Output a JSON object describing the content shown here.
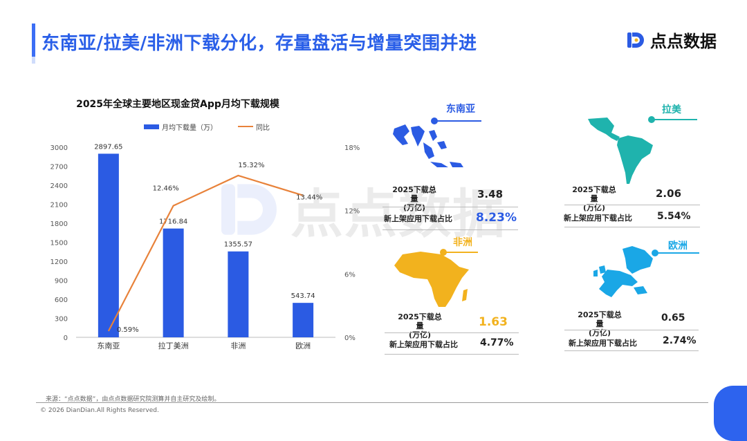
{
  "header": {
    "title": "东南亚/拉美/非洲下载分化，存量盘活与增量突围并进",
    "logo_text": "点点数据"
  },
  "watermark": "点点数据",
  "chart_data": {
    "type": "bar",
    "title": "2025年全球主要地区现金贷App月均下载规模",
    "categories": [
      "东南亚",
      "拉丁美洲",
      "非洲",
      "欧洲"
    ],
    "series": [
      {
        "name": "月均下载量（万）",
        "type": "bar",
        "axis": "left",
        "color": "#2b5be3",
        "values": [
          2897.65,
          1716.84,
          1355.57,
          543.74
        ]
      },
      {
        "name": "同比",
        "type": "line",
        "axis": "right",
        "color": "#e8823a",
        "values": [
          0.59,
          12.46,
          15.32,
          13.44
        ]
      }
    ],
    "left_axis": {
      "min": 0,
      "max": 3000,
      "ticks": [
        0,
        300,
        600,
        900,
        1200,
        1500,
        1800,
        2100,
        2400,
        2700,
        3000
      ]
    },
    "right_axis": {
      "min": 0,
      "max": 18,
      "ticks": [
        0,
        6,
        12,
        18
      ],
      "tick_labels": [
        "0%",
        "6%",
        "12%",
        "18%"
      ]
    },
    "data_labels_bar": [
      "2897.65",
      "1716.84",
      "1355.57",
      "543.74"
    ],
    "data_labels_line": [
      "0.59%",
      "12.46%",
      "15.32%",
      "13.44%"
    ],
    "legend_position": "top",
    "grid": false
  },
  "regions": {
    "sea": {
      "name": "东南亚",
      "color": "#2b5be3",
      "total_label": "2025下载总量\n(万亿)",
      "total": "3.48",
      "share_label": "新上架应用下载占比",
      "share": "8.23%",
      "share_color": "#2b5be3"
    },
    "latam": {
      "name": "拉美",
      "color": "#1fb3ad",
      "total_label": "2025下载总量\n(万亿)",
      "total": "2.06",
      "share_label": "新上架应用下载占比",
      "share": "5.54%"
    },
    "africa": {
      "name": "非洲",
      "color": "#f2b21e",
      "total_label": "2025下载总量\n(万亿)",
      "total": "1.63",
      "total_color": "#f2b21e",
      "share_label": "新上架应用下载占比",
      "share": "4.77%"
    },
    "europe": {
      "name": "欧洲",
      "color": "#1aa7e6",
      "total_label": "2025下载总量\n(万亿)",
      "total": "0.65",
      "share_label": "新上架应用下载占比",
      "share": "2.74%"
    }
  },
  "footer": {
    "source": "来源：“点点数据”，由点点数据研究院测算并自主研究及绘制。",
    "copyright": "© 2026 DianDian.All Rights Reserved."
  }
}
